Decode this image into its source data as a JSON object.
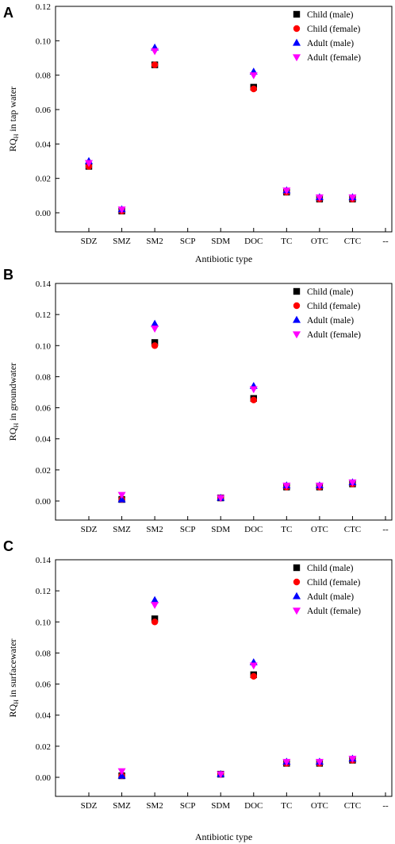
{
  "chart_data": [
    {
      "panel": "A",
      "type": "scatter",
      "categories": [
        "SDZ",
        "SMZ",
        "SM2",
        "SCP",
        "SDM",
        "DOC",
        "TC",
        "OTC",
        "CTC",
        "--"
      ],
      "ylabel_main": "RQ",
      "ylabel_sub": "H",
      "ylabel_rest": " in tap water",
      "xlabel": "Antibiotic type",
      "ylim": [
        0.0,
        0.12
      ],
      "yticks": [
        "0.00",
        "0.02",
        "0.04",
        "0.06",
        "0.08",
        "0.10",
        "0.12"
      ],
      "legend_position": "top-right",
      "series": [
        {
          "name": "Child (male)",
          "color": "#000000",
          "marker": "square",
          "values": [
            0.027,
            0.001,
            0.086,
            null,
            null,
            0.073,
            0.012,
            0.008,
            0.008,
            null
          ]
        },
        {
          "name": "Child (female)",
          "color": "#ff0000",
          "marker": "circle",
          "values": [
            0.027,
            0.001,
            0.086,
            null,
            null,
            0.072,
            0.012,
            0.008,
            0.008,
            null
          ]
        },
        {
          "name": "Adult (male)",
          "color": "#0000ff",
          "marker": "triangle-up",
          "values": [
            0.03,
            0.002,
            0.096,
            null,
            null,
            0.082,
            0.013,
            0.009,
            0.009,
            null
          ]
        },
        {
          "name": "Adult (female)",
          "color": "#ff00ff",
          "marker": "triangle-down",
          "values": [
            0.029,
            0.002,
            0.094,
            null,
            null,
            0.08,
            0.013,
            0.009,
            0.009,
            null
          ]
        }
      ]
    },
    {
      "panel": "B",
      "type": "scatter",
      "categories": [
        "SDZ",
        "SMZ",
        "SM2",
        "SCP",
        "SDM",
        "DOC",
        "TC",
        "OTC",
        "CTC",
        "--"
      ],
      "ylabel_main": "RQ",
      "ylabel_sub": "H",
      "ylabel_rest": " in groundwater",
      "xlabel": "",
      "ylim": [
        0.0,
        0.14
      ],
      "yticks": [
        "0.00",
        "0.02",
        "0.04",
        "0.06",
        "0.08",
        "0.10",
        "0.12",
        "0.14"
      ],
      "legend_position": "top-right",
      "series": [
        {
          "name": "Child (male)",
          "color": "#000000",
          "marker": "square",
          "values": [
            null,
            0.001,
            0.102,
            null,
            0.002,
            0.066,
            0.009,
            0.009,
            0.011,
            null
          ]
        },
        {
          "name": "Child (female)",
          "color": "#ff0000",
          "marker": "circle",
          "values": [
            null,
            0.001,
            0.1,
            null,
            0.002,
            0.065,
            0.009,
            0.009,
            0.011,
            null
          ]
        },
        {
          "name": "Adult (male)",
          "color": "#0000ff",
          "marker": "triangle-up",
          "values": [
            null,
            0.001,
            0.114,
            null,
            0.002,
            0.074,
            0.01,
            0.01,
            0.012,
            null
          ]
        },
        {
          "name": "Adult (female)",
          "color": "#ff00ff",
          "marker": "triangle-down",
          "values": [
            null,
            0.004,
            0.111,
            null,
            0.002,
            0.072,
            0.01,
            0.01,
            0.012,
            null
          ]
        }
      ]
    },
    {
      "panel": "C",
      "type": "scatter",
      "categories": [
        "SDZ",
        "SMZ",
        "SM2",
        "SCP",
        "SDM",
        "DOC",
        "TC",
        "OTC",
        "CTC",
        "--"
      ],
      "ylabel_main": "RQ",
      "ylabel_sub": "H",
      "ylabel_rest": " in surfacewater",
      "xlabel": "Antibiotic type",
      "ylim": [
        0.0,
        0.14
      ],
      "yticks": [
        "0.00",
        "0.02",
        "0.04",
        "0.06",
        "0.08",
        "0.10",
        "0.12",
        "0.14"
      ],
      "legend_position": "top-right",
      "series": [
        {
          "name": "Child (male)",
          "color": "#000000",
          "marker": "square",
          "values": [
            null,
            0.001,
            0.102,
            null,
            0.002,
            0.066,
            0.009,
            0.009,
            0.011,
            null
          ]
        },
        {
          "name": "Child (female)",
          "color": "#ff0000",
          "marker": "circle",
          "values": [
            null,
            0.001,
            0.1,
            null,
            0.002,
            0.065,
            0.009,
            0.009,
            0.011,
            null
          ]
        },
        {
          "name": "Adult (male)",
          "color": "#0000ff",
          "marker": "triangle-up",
          "values": [
            null,
            0.001,
            0.114,
            null,
            0.002,
            0.074,
            0.01,
            0.01,
            0.012,
            null
          ]
        },
        {
          "name": "Adult (female)",
          "color": "#ff00ff",
          "marker": "triangle-down",
          "values": [
            null,
            0.004,
            0.111,
            null,
            0.002,
            0.072,
            0.01,
            0.01,
            0.012,
            null
          ]
        }
      ]
    }
  ]
}
